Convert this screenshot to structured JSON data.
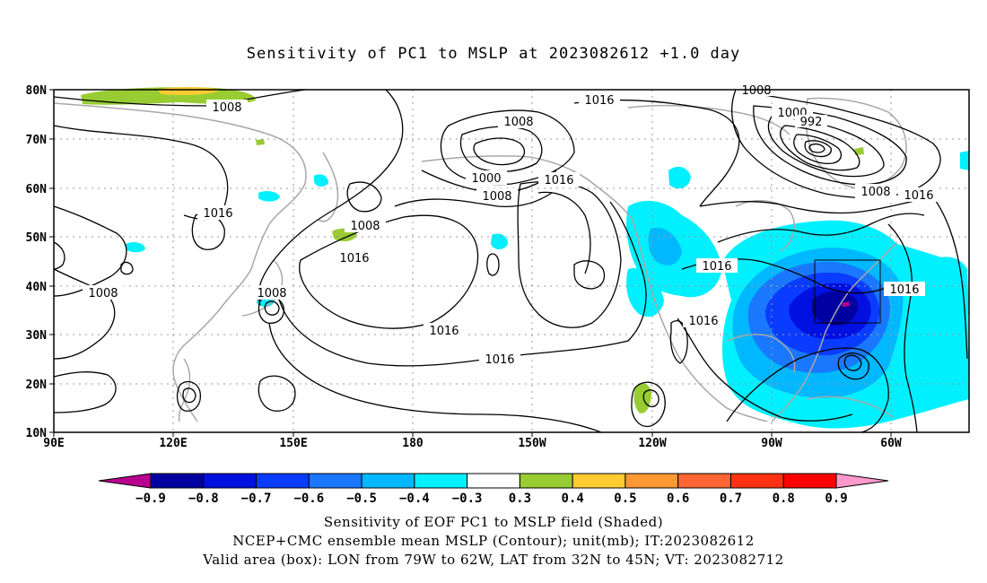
{
  "title": "Sensitivity of PC1 to MSLP at 2023082612 +1.0 day",
  "lat_labels": [
    "80N",
    "70N",
    "60N",
    "50N",
    "40N",
    "30N",
    "20N",
    "10N"
  ],
  "lon_labels": [
    "90E",
    "120E",
    "150E",
    "180",
    "150W",
    "120W",
    "90W",
    "60W"
  ],
  "colorbar": {
    "colors": [
      "#b8008c",
      "#0000a0",
      "#0010e0",
      "#0a3cff",
      "#1a78ff",
      "#00b8ff",
      "#00f0ff",
      "#ffffff",
      "#99cc33",
      "#ffcc33",
      "#ff9933",
      "#ff6633",
      "#ff3311",
      "#ff0000",
      "#ff99cc"
    ],
    "labels": [
      "-0.9",
      "-0.8",
      "-0.7",
      "-0.6",
      "-0.5",
      "-0.4",
      "-0.3",
      "0.3",
      "0.4",
      "0.5",
      "0.6",
      "0.7",
      "0.8",
      "0.9"
    ]
  },
  "contour_labels": [
    "1016",
    "1008",
    "1008",
    "1000",
    "992",
    "1016",
    "1008",
    "1000",
    "1008",
    "1016",
    "1016",
    "1008",
    "1016",
    "1008",
    "1016",
    "1016",
    "1016",
    "1016",
    "1008",
    "1016",
    "1008"
  ],
  "valid_box": {
    "lon_west": "79W",
    "lon_east": "62W",
    "lat_south": "32N",
    "lat_north": "45N"
  },
  "captions": [
    "Sensitivity of EOF PC1 to MSLP field (Shaded)",
    "NCEP+CMC ensemble mean MSLP (Contour); unit(mb); IT:2023082612",
    "Valid area (box): LON from 79W to 62W, LAT from 32N to 45N; VT: 2023082712"
  ]
}
